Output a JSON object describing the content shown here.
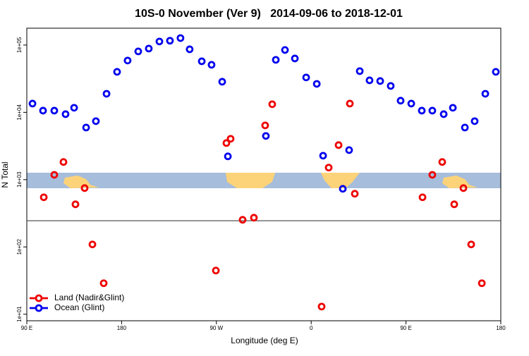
{
  "chart_data": {
    "type": "scatter",
    "log_y": true,
    "title": "10S-0 November (Ver 9)   2014-09-06 to 2018-12-01",
    "xlabel": "Longitude (deg E)",
    "ylabel": "N Total",
    "xlim": [
      90,
      540
    ],
    "ylim": [
      8,
      178000
    ],
    "xticks": [
      {
        "value": 90,
        "label": "90 E"
      },
      {
        "value": 180,
        "label": "180"
      },
      {
        "value": 270,
        "label": "90 W"
      },
      {
        "value": 360,
        "label": "0"
      },
      {
        "value": 450,
        "label": "90 E"
      },
      {
        "value": 540,
        "label": "180"
      }
    ],
    "yticks": [
      {
        "value": 10,
        "label": "1e+01"
      },
      {
        "value": 100,
        "label": "1e+02"
      },
      {
        "value": 1000,
        "label": "1e+03"
      },
      {
        "value": 10000,
        "label": "1e+04"
      },
      {
        "value": 100000,
        "label": "1e+05"
      }
    ],
    "hline": 245,
    "legend": "bottom-left",
    "series": [
      {
        "name": "Land (Nadir&Glint)",
        "color": "#ee0000",
        "x": [
          106.1,
          116.1,
          124.8,
          136.2,
          144.9,
          152.3,
          163.0,
          269.5,
          279.5,
          283.5,
          294.9,
          305.6,
          316.3,
          323.0,
          369.9,
          376.6,
          386.0,
          396.7,
          401.4,
          465.7,
          475.0,
          484.4,
          495.8,
          504.5,
          511.9,
          522.0
        ],
        "values": [
          547,
          1180,
          1830,
          430,
          749,
          109,
          28.9,
          44.6,
          3500,
          4050,
          253,
          272,
          6400,
          13200,
          13.0,
          1510,
          3260,
          13500,
          618,
          547,
          1180,
          1830,
          430,
          749,
          109,
          28.9
        ]
      },
      {
        "name": "Ocean (Glint)",
        "color": "#0000ee",
        "x": [
          95.4,
          105.4,
          116.1,
          126.8,
          134.9,
          146.3,
          155.6,
          165.7,
          175.7,
          185.7,
          195.8,
          205.8,
          215.9,
          225.9,
          235.9,
          244.6,
          256.1,
          265.4,
          275.5,
          280.9,
          317.0,
          326.4,
          335.1,
          344.5,
          355.2,
          365.3,
          371.3,
          390.0,
          396.0,
          406.1,
          415.4,
          425.5,
          435.5,
          444.9,
          455.0,
          465.0,
          475.0,
          485.8,
          494.5,
          505.9,
          515.2,
          525.3,
          535.3
        ],
        "values": [
          13500,
          10600,
          10600,
          9400,
          11700,
          5950,
          7400,
          18900,
          40000,
          58900,
          80500,
          88700,
          113000,
          116000,
          127000,
          86500,
          57400,
          50900,
          28500,
          2220,
          4460,
          60300,
          84500,
          63200,
          33000,
          26500,
          2270,
          731,
          2750,
          41000,
          29900,
          29200,
          24700,
          14900,
          13500,
          10600,
          10600,
          9400,
          11700,
          5950,
          7400,
          18900,
          40000
        ]
      }
    ]
  }
}
